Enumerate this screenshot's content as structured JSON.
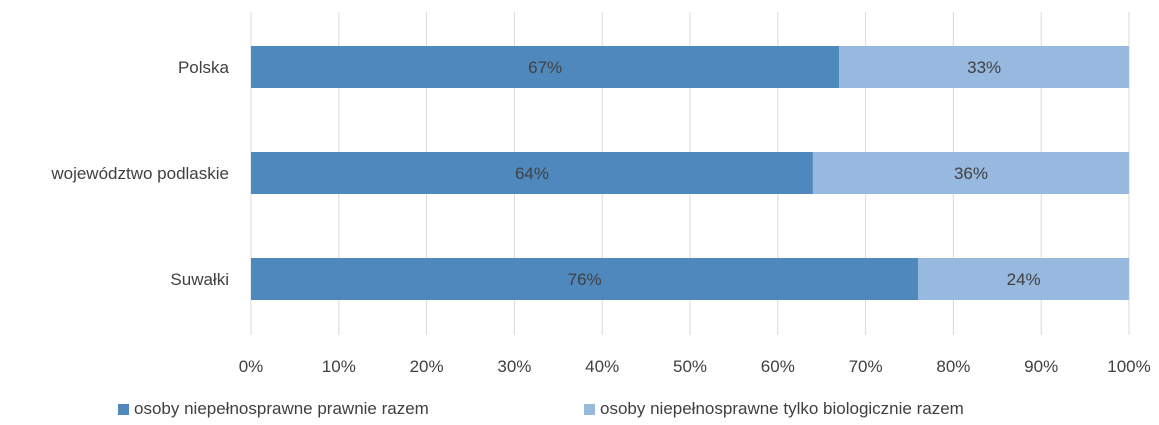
{
  "chart_data": {
    "type": "bar",
    "orientation": "horizontal",
    "stacked": true,
    "categories": [
      "Polska",
      "województwo podlaskie",
      "Suwałki"
    ],
    "series": [
      {
        "name": "osoby niepełnosprawne prawnie razem",
        "values": [
          67,
          64,
          76
        ],
        "color": "#4f88bc"
      },
      {
        "name": "osoby niepełnosprawne tylko biologicznie razem",
        "values": [
          33,
          36,
          24
        ],
        "color": "#97b8df"
      }
    ],
    "data_labels": [
      [
        "67%",
        "64%",
        "76%"
      ],
      [
        "33%",
        "36%",
        "24%"
      ]
    ],
    "xlim": [
      0,
      100
    ],
    "x_ticks": [
      "0%",
      "10%",
      "20%",
      "30%",
      "40%",
      "50%",
      "60%",
      "70%",
      "80%",
      "90%",
      "100%"
    ],
    "grid": true,
    "legend_position": "bottom",
    "title": "",
    "xlabel": "",
    "ylabel": ""
  }
}
